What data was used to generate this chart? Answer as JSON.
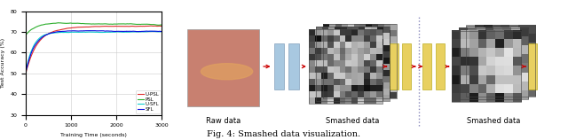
{
  "title": "Fig. 4: Smashed data visualization.",
  "plot_xlabel": "Training Time (seconds)",
  "plot_ylabel": "Test Accuracy (%)",
  "plot_xlim": [
    0,
    3000
  ],
  "plot_ylim": [
    30,
    80
  ],
  "plot_yticks": [
    30,
    40,
    50,
    60,
    70,
    80
  ],
  "plot_xticks": [
    0,
    1000,
    2000,
    3000
  ],
  "legend_labels": [
    "U-PSL",
    "PSL",
    "U-SFL",
    "SFL"
  ],
  "legend_colors": [
    "#dd2222",
    "#22aa22",
    "#00cccc",
    "#0000dd"
  ],
  "raw_data_label": "Raw data",
  "smashed_data_label": "Smashed data",
  "background_color": "#ffffff",
  "grid_color": "#cccccc",
  "skin_color_bg": "#c88070",
  "skin_color_center": "#e0a060",
  "nn_block_color_blue": "#a8c8e0",
  "nn_block_color_yellow": "#e8d060",
  "arrow_color": "#cc0000",
  "dotted_line_color": "#8888bb"
}
